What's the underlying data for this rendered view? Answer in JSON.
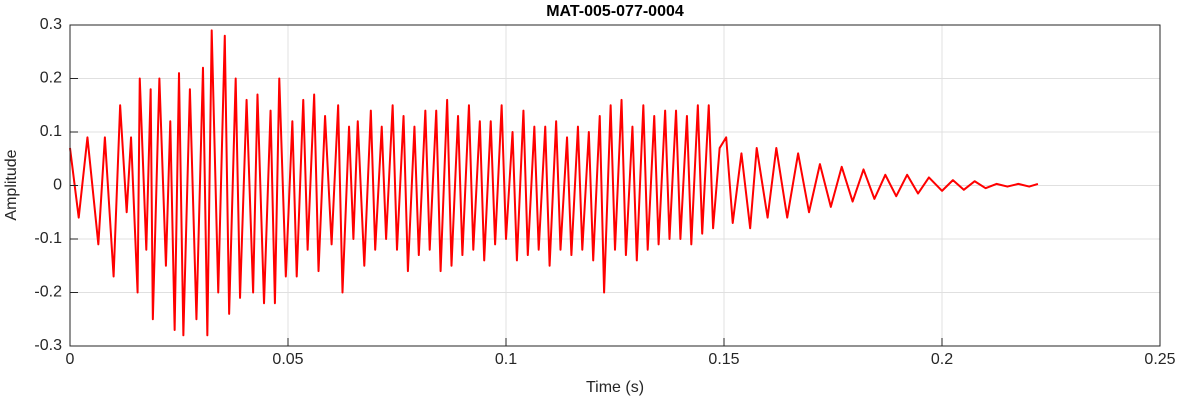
{
  "chart_data": {
    "type": "line",
    "title": "MAT-005-077-0004",
    "x_label": "Time (s)",
    "y_label": "Amplitude",
    "x": [
      0,
      0.002,
      0.004,
      0.0065,
      0.008,
      0.01,
      0.0115,
      0.013,
      0.014,
      0.0155,
      0.016,
      0.0175,
      0.0185,
      0.019,
      0.0205,
      0.022,
      0.023,
      0.024,
      0.025,
      0.026,
      0.0275,
      0.029,
      0.0305,
      0.0315,
      0.0325,
      0.034,
      0.0355,
      0.0365,
      0.038,
      0.039,
      0.0405,
      0.042,
      0.043,
      0.0445,
      0.046,
      0.047,
      0.048,
      0.0495,
      0.051,
      0.052,
      0.0535,
      0.0545,
      0.056,
      0.057,
      0.0585,
      0.06,
      0.0615,
      0.0625,
      0.064,
      0.065,
      0.066,
      0.0675,
      0.069,
      0.07,
      0.0715,
      0.0725,
      0.074,
      0.075,
      0.0765,
      0.0775,
      0.079,
      0.08,
      0.0815,
      0.0825,
      0.084,
      0.085,
      0.0865,
      0.0875,
      0.089,
      0.09,
      0.0915,
      0.0925,
      0.094,
      0.095,
      0.0965,
      0.0975,
      0.099,
      0.1,
      0.1015,
      0.1025,
      0.104,
      0.105,
      0.1065,
      0.1075,
      0.109,
      0.11,
      0.1115,
      0.1125,
      0.114,
      0.115,
      0.1165,
      0.1175,
      0.119,
      0.12,
      0.1215,
      0.1225,
      0.124,
      0.125,
      0.1265,
      0.1275,
      0.129,
      0.13,
      0.1315,
      0.1325,
      0.134,
      0.135,
      0.1365,
      0.1375,
      0.139,
      0.14,
      0.1415,
      0.1425,
      0.144,
      0.145,
      0.1465,
      0.1475,
      0.149,
      0.1505,
      0.152,
      0.154,
      0.156,
      0.1575,
      0.16,
      0.162,
      0.1645,
      0.167,
      0.1695,
      0.172,
      0.1745,
      0.177,
      0.1795,
      0.182,
      0.1845,
      0.187,
      0.1895,
      0.192,
      0.1945,
      0.197,
      0.2,
      0.2025,
      0.205,
      0.2075,
      0.21,
      0.2125,
      0.215,
      0.2175,
      0.22,
      0.222
    ],
    "series": [
      {
        "name": "Amplitude",
        "color": "#ff0000",
        "values": [
          0.07,
          -0.06,
          0.09,
          -0.11,
          0.09,
          -0.17,
          0.15,
          -0.05,
          0.09,
          -0.2,
          0.2,
          -0.12,
          0.18,
          -0.25,
          0.2,
          -0.15,
          0.12,
          -0.27,
          0.21,
          -0.28,
          0.18,
          -0.25,
          0.22,
          -0.28,
          0.29,
          -0.2,
          0.28,
          -0.24,
          0.2,
          -0.21,
          0.16,
          -0.2,
          0.17,
          -0.22,
          0.14,
          -0.22,
          0.2,
          -0.17,
          0.12,
          -0.17,
          0.16,
          -0.12,
          0.17,
          -0.16,
          0.13,
          -0.11,
          0.15,
          -0.2,
          0.11,
          -0.1,
          0.12,
          -0.15,
          0.14,
          -0.12,
          0.11,
          -0.1,
          0.15,
          -0.12,
          0.13,
          -0.16,
          0.11,
          -0.13,
          0.14,
          -0.12,
          0.14,
          -0.16,
          0.16,
          -0.15,
          0.13,
          -0.13,
          0.15,
          -0.12,
          0.12,
          -0.14,
          0.12,
          -0.11,
          0.15,
          -0.1,
          0.1,
          -0.14,
          0.14,
          -0.13,
          0.11,
          -0.12,
          0.11,
          -0.15,
          0.12,
          -0.12,
          0.09,
          -0.13,
          0.11,
          -0.12,
          0.1,
          -0.14,
          0.13,
          -0.2,
          0.15,
          -0.12,
          0.16,
          -0.13,
          0.11,
          -0.14,
          0.15,
          -0.12,
          0.13,
          -0.11,
          0.14,
          -0.1,
          0.14,
          -0.1,
          0.13,
          -0.11,
          0.15,
          -0.09,
          0.15,
          -0.08,
          0.07,
          0.09,
          -0.07,
          0.06,
          -0.08,
          0.07,
          -0.06,
          0.07,
          -0.06,
          0.06,
          -0.05,
          0.04,
          -0.04,
          0.035,
          -0.03,
          0.03,
          -0.025,
          0.02,
          -0.02,
          0.02,
          -0.015,
          0.015,
          -0.01,
          0.01,
          -0.008,
          0.008,
          -0.005,
          0.003,
          -0.002,
          0.003,
          -0.002,
          0.003
        ]
      }
    ],
    "xlim": [
      0,
      0.25
    ],
    "xticks": [
      0,
      0.05,
      0.1,
      0.15,
      0.2,
      0.25
    ],
    "ylim": [
      -0.3,
      0.3
    ],
    "yticks": [
      -0.3,
      -0.2,
      -0.1,
      0,
      0.1,
      0.2,
      0.3
    ],
    "grid": true
  }
}
